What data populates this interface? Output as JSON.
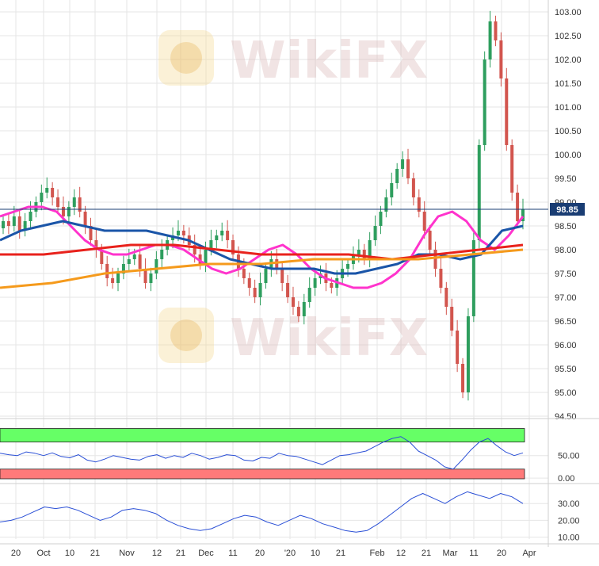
{
  "chart_data": [
    {
      "type": "candlestick",
      "title": "",
      "ylim": [
        94.3,
        103.1
      ],
      "y_ticks": [
        "94.50",
        "95.00",
        "95.50",
        "96.00",
        "96.50",
        "97.00",
        "97.50",
        "98.00",
        "98.50",
        "99.00",
        "99.50",
        "100.00",
        "100.50",
        "101.00",
        "101.50",
        "102.00",
        "102.50",
        "103.00"
      ],
      "x_ticks": [
        "20",
        "Oct",
        "10",
        "21",
        "Nov",
        "12",
        "21",
        "Dec",
        "11",
        "20",
        "'20",
        "10",
        "21",
        "Feb",
        "12",
        "21",
        "Mar",
        "11",
        "20",
        "Apr"
      ],
      "last_price": "98.85",
      "candles_close": [
        98.6,
        98.5,
        98.7,
        98.4,
        98.6,
        98.8,
        99.0,
        99.2,
        99.3,
        99.1,
        98.9,
        98.7,
        98.9,
        99.1,
        98.8,
        98.5,
        98.2,
        98.0,
        97.7,
        97.4,
        97.3,
        97.5,
        97.7,
        97.8,
        97.9,
        97.6,
        97.3,
        97.5,
        97.8,
        98.0,
        98.2,
        98.3,
        98.4,
        98.3,
        98.1,
        97.9,
        97.7,
        98.0,
        98.2,
        98.3,
        98.4,
        98.2,
        97.9,
        97.6,
        97.4,
        97.2,
        97.0,
        97.3,
        97.6,
        97.8,
        97.6,
        97.3,
        97.0,
        96.8,
        96.6,
        96.9,
        97.2,
        97.4,
        97.5,
        97.3,
        97.2,
        97.4,
        97.6,
        97.7,
        97.9,
        98.0,
        97.8,
        98.2,
        98.5,
        98.8,
        99.1,
        99.4,
        99.7,
        99.9,
        99.5,
        99.1,
        98.8,
        98.4,
        98.0,
        97.6,
        97.2,
        96.8,
        96.3,
        95.6,
        95.0,
        96.6,
        98.2,
        100.2,
        102.0,
        102.8,
        102.4,
        101.6,
        100.2,
        99.2,
        98.6,
        98.85
      ],
      "series": [
        {
          "name": "",
          "color": "#ff33cc",
          "values": [
            98.7,
            98.8,
            98.9,
            98.9,
            98.8,
            98.5,
            98.2,
            98.0,
            97.9,
            97.9,
            98.0,
            98.1,
            98.1,
            98.0,
            97.8,
            97.6,
            97.5,
            97.6,
            97.8,
            98.0,
            98.1,
            97.9,
            97.6,
            97.4,
            97.3,
            97.2,
            97.2,
            97.3,
            97.5,
            97.8,
            98.3,
            98.7,
            98.8,
            98.6,
            98.2,
            98.0,
            98.3,
            98.7
          ]
        },
        {
          "name": "",
          "color": "#1a55a8",
          "values": [
            98.2,
            98.4,
            98.5,
            98.6,
            98.5,
            98.4,
            98.4,
            98.4,
            98.3,
            98.2,
            98.0,
            97.8,
            97.7,
            97.6,
            97.6,
            97.6,
            97.5,
            97.5,
            97.6,
            97.7,
            97.9,
            97.9,
            97.8,
            97.9,
            98.4,
            98.5
          ]
        },
        {
          "name": "",
          "color": "#e8221c",
          "values": [
            97.9,
            97.9,
            98.0,
            98.1,
            98.1,
            98.0,
            97.9,
            97.9,
            97.9,
            97.8,
            97.9,
            98.0,
            98.1
          ]
        },
        {
          "name": "",
          "color": "#f59a1c",
          "values": [
            97.2,
            97.3,
            97.5,
            97.6,
            97.7,
            97.7,
            97.8,
            97.8,
            97.8,
            97.9,
            98.0
          ]
        }
      ]
    },
    {
      "type": "line",
      "title": "",
      "ylim": [
        -5,
        125
      ],
      "y_ticks": [
        "50.00",
        "0.00"
      ],
      "bands": {
        "upper_color": "#66ff66",
        "lower_color": "#ff7a7a"
      },
      "series": [
        {
          "name": "",
          "color": "#2a4fd6",
          "values": [
            55,
            52,
            50,
            58,
            55,
            50,
            56,
            48,
            45,
            52,
            40,
            36,
            42,
            50,
            46,
            42,
            40,
            48,
            52,
            44,
            50,
            46,
            55,
            50,
            42,
            46,
            52,
            50,
            40,
            38,
            46,
            44,
            55,
            50,
            48,
            42,
            36,
            30,
            40,
            50,
            52,
            56,
            60,
            70,
            80,
            88,
            92,
            80,
            60,
            50,
            40,
            25,
            20,
            40,
            62,
            80,
            88,
            72,
            58,
            50,
            56
          ]
        }
      ]
    },
    {
      "type": "line",
      "title": "",
      "ylim": [
        7,
        40
      ],
      "y_ticks": [
        "30.00",
        "20.00",
        "10.00"
      ],
      "series": [
        {
          "name": "",
          "color": "#2a4fd6",
          "values": [
            19,
            20,
            22,
            25,
            28,
            27,
            28,
            26,
            23,
            20,
            22,
            26,
            27,
            26,
            24,
            20,
            17,
            15,
            14,
            15,
            18,
            21,
            23,
            22,
            19,
            17,
            20,
            23,
            21,
            18,
            16,
            14,
            13,
            14,
            18,
            23,
            28,
            33,
            36,
            33,
            30,
            34,
            37,
            35,
            33,
            36,
            34,
            30
          ]
        }
      ]
    }
  ]
}
